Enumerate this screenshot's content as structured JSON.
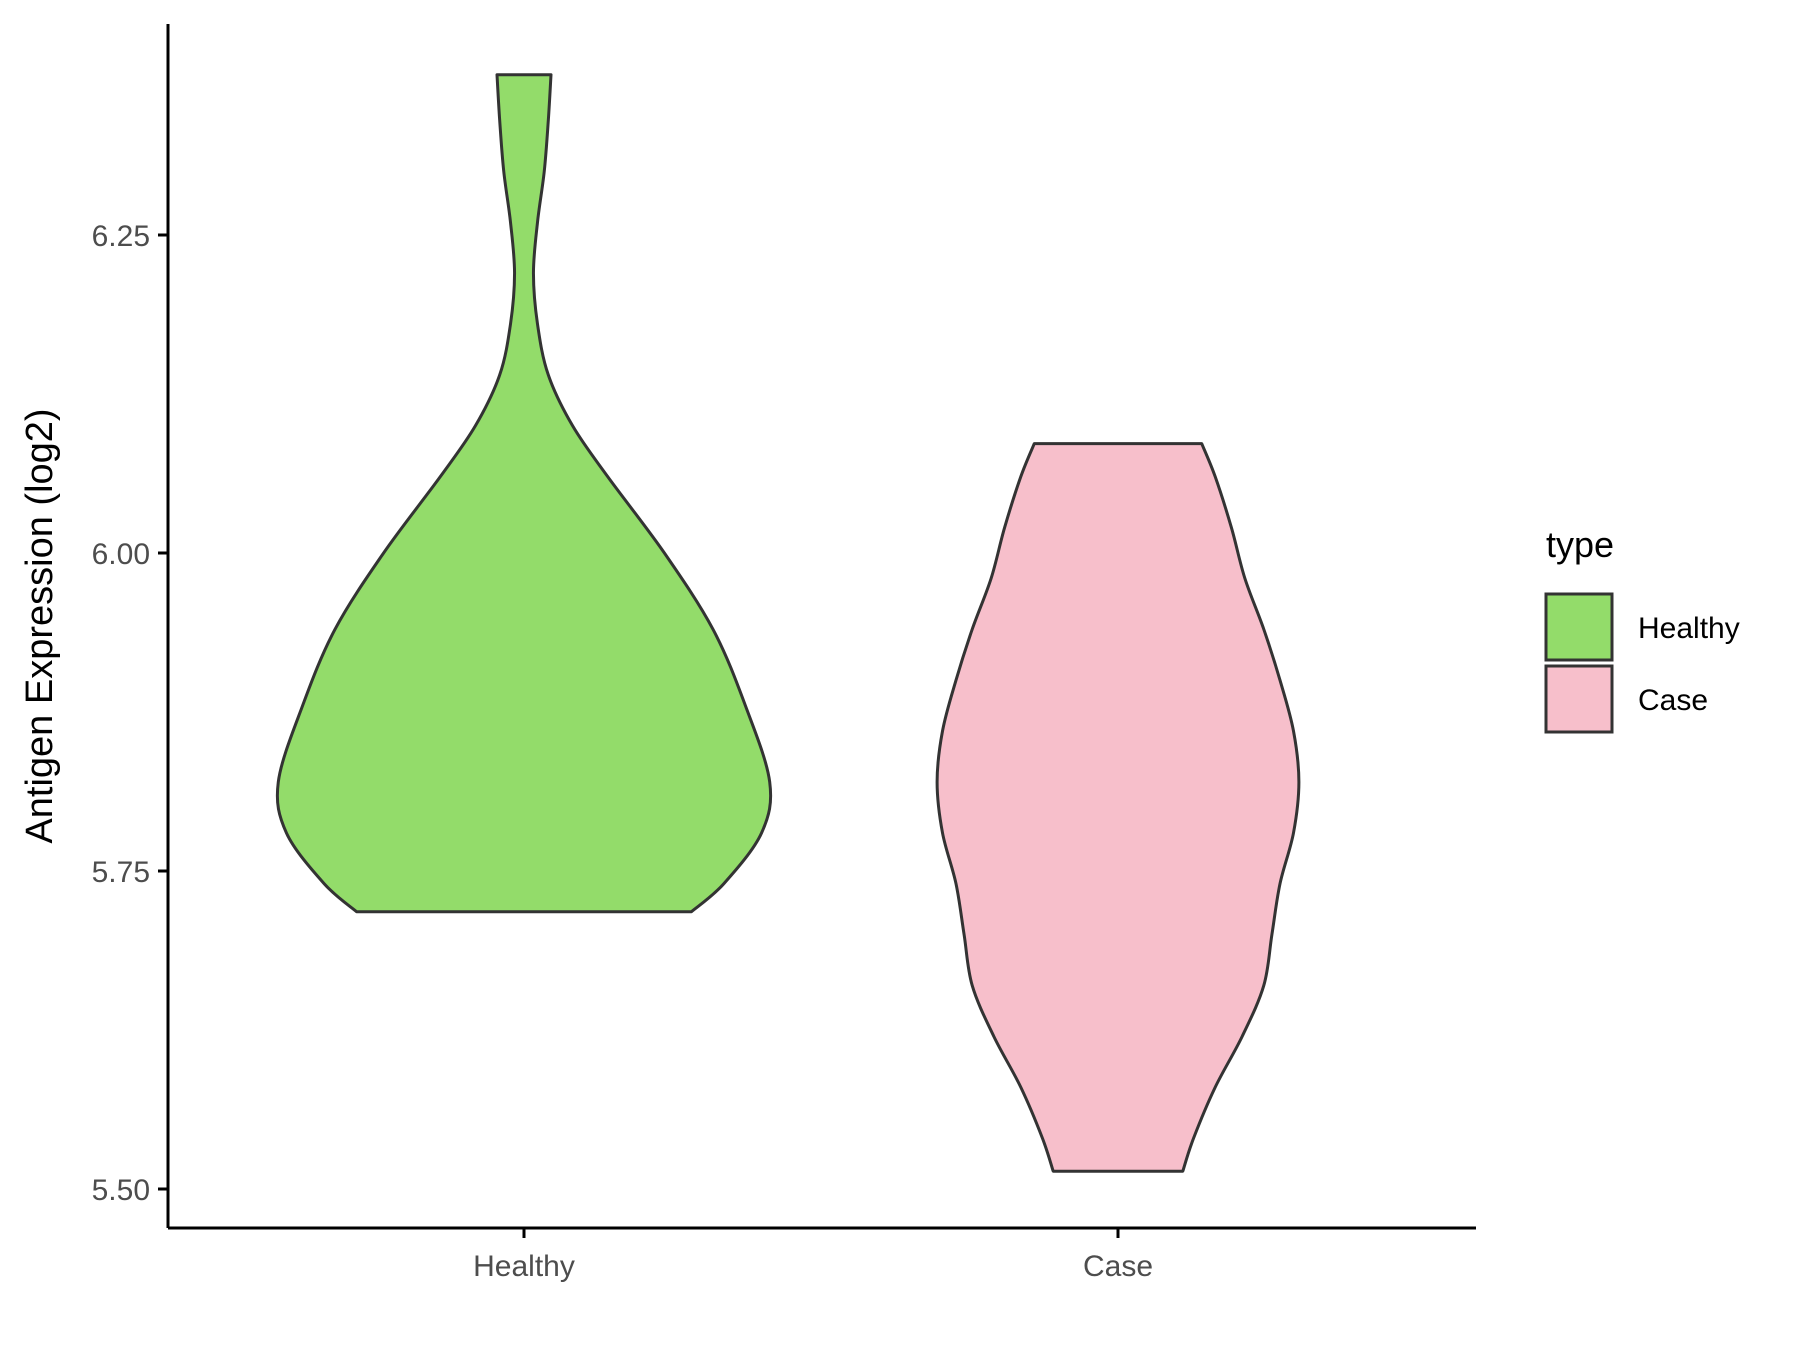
{
  "chart_data": {
    "type": "violin",
    "ylabel": "Antigen Expression (log2)",
    "xlabel": "",
    "categories": [
      "Healthy",
      "Case"
    ],
    "ylim": [
      5.47,
      6.42
    ],
    "yticks": [
      5.5,
      5.75,
      6.0,
      6.25
    ],
    "ytick_labels": [
      "5.50",
      "5.75",
      "6.00",
      "6.25"
    ],
    "grid": false,
    "legend": {
      "title": "type",
      "position": "right",
      "entries": [
        {
          "label": "Healthy",
          "color": "#93DC6A"
        },
        {
          "label": "Case",
          "color": "#F7BFCB"
        }
      ]
    },
    "series": [
      {
        "name": "Healthy",
        "color": "#93DC6A",
        "min": 5.718,
        "max": 6.376,
        "density_profile": [
          [
            5.718,
            0.62
          ],
          [
            5.74,
            0.74
          ],
          [
            5.78,
            0.88
          ],
          [
            5.82,
            0.91
          ],
          [
            5.88,
            0.82
          ],
          [
            5.94,
            0.7
          ],
          [
            6.0,
            0.52
          ],
          [
            6.06,
            0.31
          ],
          [
            6.1,
            0.18
          ],
          [
            6.14,
            0.09
          ],
          [
            6.18,
            0.05
          ],
          [
            6.22,
            0.035
          ],
          [
            6.26,
            0.05
          ],
          [
            6.3,
            0.075
          ],
          [
            6.34,
            0.09
          ],
          [
            6.376,
            0.1
          ]
        ]
      },
      {
        "name": "Case",
        "color": "#F7BFCB",
        "min": 5.514,
        "max": 6.086,
        "density_profile": [
          [
            5.514,
            0.24
          ],
          [
            5.54,
            0.28
          ],
          [
            5.58,
            0.36
          ],
          [
            5.62,
            0.46
          ],
          [
            5.66,
            0.54
          ],
          [
            5.7,
            0.57
          ],
          [
            5.74,
            0.6
          ],
          [
            5.78,
            0.65
          ],
          [
            5.82,
            0.67
          ],
          [
            5.86,
            0.65
          ],
          [
            5.9,
            0.6
          ],
          [
            5.94,
            0.54
          ],
          [
            5.98,
            0.47
          ],
          [
            6.02,
            0.42
          ],
          [
            6.06,
            0.36
          ],
          [
            6.086,
            0.31
          ]
        ]
      }
    ]
  }
}
